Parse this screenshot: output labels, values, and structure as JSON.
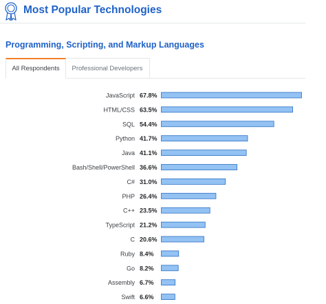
{
  "header": {
    "title": "Most Popular Technologies",
    "icon": "award-ribbon-icon",
    "accent_color": "#1f62c7"
  },
  "section": {
    "title": "Programming, Scripting, and Markup Languages"
  },
  "tabs": [
    {
      "label": "All Respondents",
      "active": true
    },
    {
      "label": "Professional Developers",
      "active": false
    }
  ],
  "colors": {
    "bar_fill": "#93c2f3",
    "bar_stroke": "#2c6fc4",
    "tab_active_top": "#f48024",
    "label_text": "#3b4045",
    "value_text": "#242729"
  },
  "chart_data": {
    "type": "bar",
    "orientation": "horizontal",
    "title": "",
    "xlabel": "",
    "ylabel": "",
    "xlim": [
      0,
      67.8
    ],
    "value_suffix": "%",
    "categories": [
      "JavaScript",
      "HTML/CSS",
      "SQL",
      "Python",
      "Java",
      "Bash/Shell/PowerShell",
      "C#",
      "PHP",
      "C++",
      "TypeScript",
      "C",
      "Ruby",
      "Go",
      "Assembly",
      "Swift"
    ],
    "values": [
      67.8,
      63.5,
      54.4,
      41.7,
      41.1,
      36.6,
      31.0,
      26.4,
      23.5,
      21.2,
      20.6,
      8.4,
      8.2,
      6.7,
      6.6
    ],
    "value_labels": [
      "67.8%",
      "63.5%",
      "54.4%",
      "41.7%",
      "41.1%",
      "36.6%",
      "31.0%",
      "26.4%",
      "23.5%",
      "21.2%",
      "20.6%",
      "8.4%",
      "8.2%",
      "6.7%",
      "6.6%"
    ]
  }
}
